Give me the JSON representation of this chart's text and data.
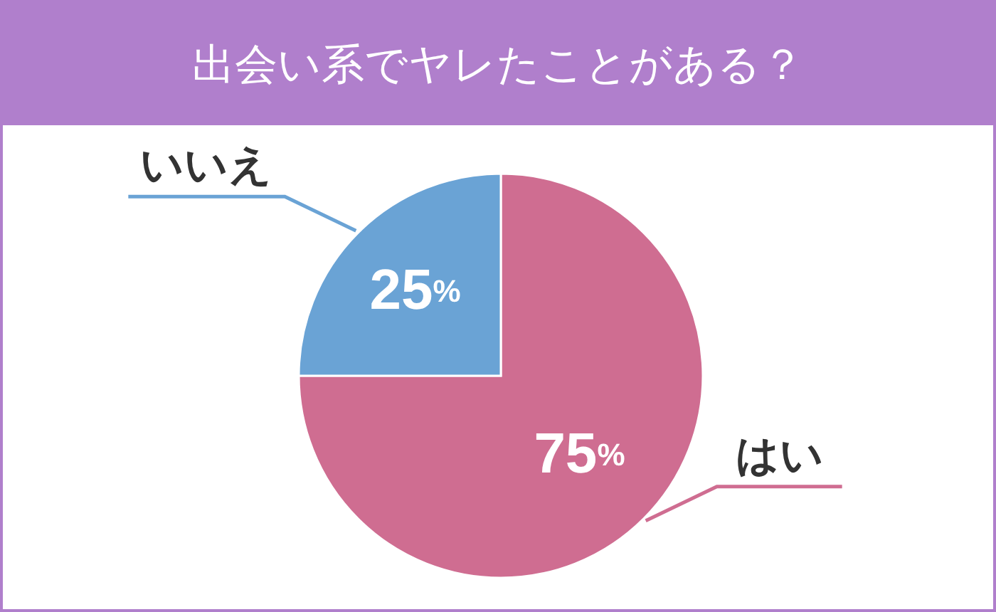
{
  "chart_data": {
    "type": "pie",
    "title": "出会い系でヤレたことがある？",
    "categories": [
      "はい",
      "いいえ"
    ],
    "values": [
      75,
      25
    ],
    "colors": [
      "#cf6d91",
      "#6aa3d5"
    ],
    "value_labels": [
      "75%",
      "25%"
    ]
  }
}
